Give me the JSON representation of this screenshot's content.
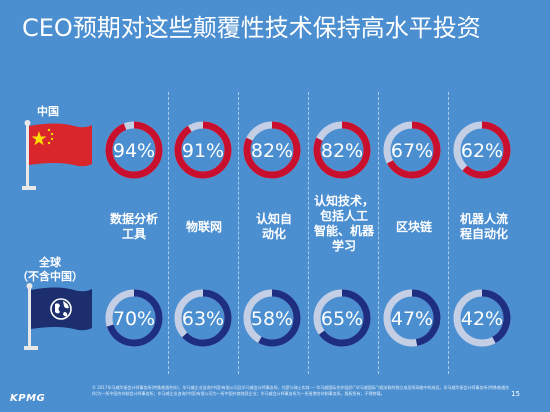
{
  "title": "CEO预期对这些颠覆性技术保持高水平投资",
  "regions": {
    "china": "中国",
    "global": "全球\n（不含中国）"
  },
  "chart_data": {
    "type": "donut-grid",
    "categories": [
      "数据分析\n工具",
      "物联网",
      "认知自\n动化",
      "认知技术，\n包括人工\n智能、机器\n学习",
      "区块链",
      "机器人流\n程自动化"
    ],
    "series": [
      {
        "name": "中国",
        "values": [
          94,
          91,
          82,
          82,
          67,
          62
        ],
        "labels": [
          "94%",
          "91%",
          "82%",
          "82%",
          "67%",
          "62%"
        ],
        "color": "#c8102e"
      },
      {
        "name": "全球（不含中国）",
        "values": [
          70,
          63,
          58,
          65,
          47,
          42
        ],
        "labels": [
          "70%",
          "63%",
          "58%",
          "65%",
          "47%",
          "42%"
        ],
        "color": "#1f2f80"
      }
    ],
    "ring_track_color": "#c4cfe6"
  },
  "footer": {
    "logo": "KPMG",
    "text": "© 2017毕马威华振会计师事务所(特殊普通合伙)、毕马威企业咨询(中国)有限公司及毕马威会计师事务所，均是与瑞士实体 — 毕马威国际合作组织(“毕马威国际”)相关联的独立成员所网络中的成员。毕马威华振会计师事务所(特殊普通合伙)为一所中国合伙制会计师事务所；毕马威企业咨询(中国)有限公司为一所中国外商独资企业；毕马威会计师事务所为一所香港合伙制事务所。版权所有，不得转载。",
    "page": "15"
  }
}
